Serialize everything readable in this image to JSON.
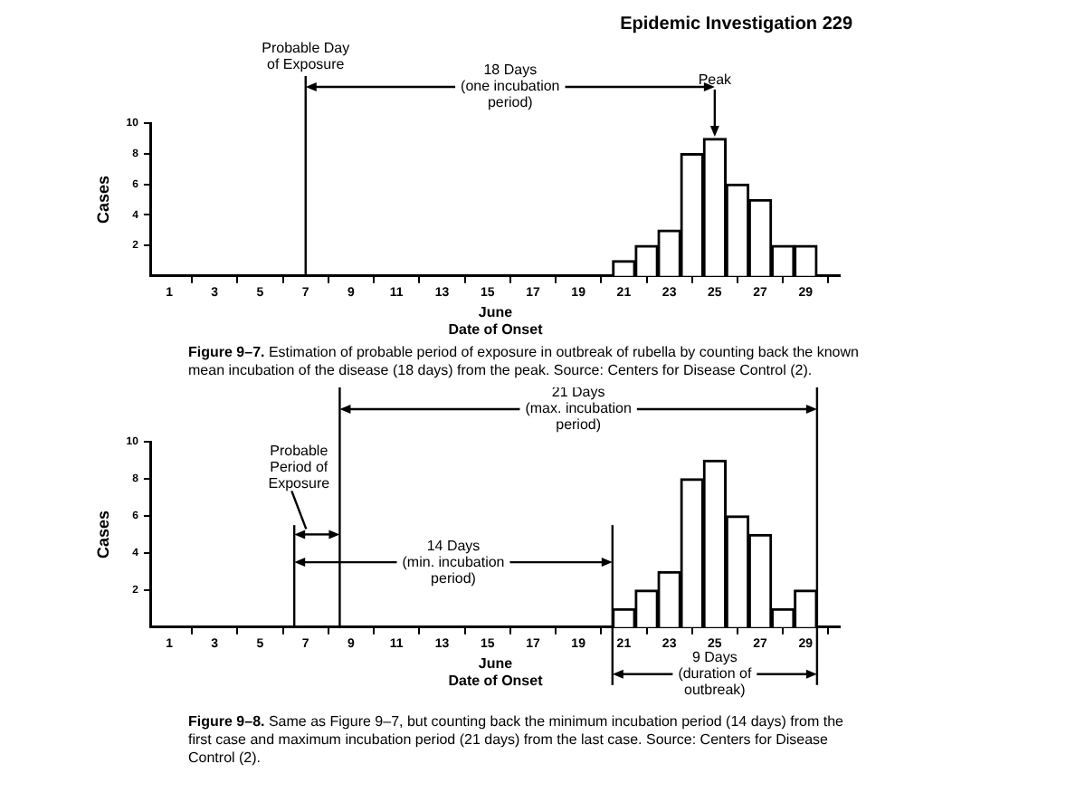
{
  "chart_data": [
    {
      "type": "bar",
      "x": [
        21,
        22,
        23,
        24,
        25,
        26,
        27,
        28,
        29
      ],
      "values": [
        1,
        2,
        3,
        8,
        9,
        6,
        5,
        2,
        2
      ],
      "color": "#ffffff",
      "xlabel": "June\nDate of Onset",
      "ylabel": "Cases",
      "xlim": [
        0.2,
        30.5
      ],
      "xticks": [
        1,
        3,
        5,
        7,
        9,
        11,
        13,
        15,
        17,
        19,
        21,
        23,
        25,
        27,
        29
      ],
      "ylim": [
        0,
        10
      ],
      "yticks": [
        2,
        4,
        6,
        8,
        10
      ],
      "grid": false,
      "legend": false,
      "ref_lines": [
        {
          "axis": "x",
          "value": 7,
          "label": "Probable Day of Exposure"
        }
      ],
      "annotations": [
        "Epidemic Investigation 229",
        "18 Days (one incubation period)",
        {
          "text": "Peak",
          "x": 25,
          "y": 9
        },
        "Figure 9–7. Estimation of probable period of exposure in outbreak of rubella by counting back the known mean incubation of the disease (18 days) from the peak. Source: Centers for Disease Control (2)."
      ]
    },
    {
      "type": "bar",
      "x": [
        21,
        22,
        23,
        24,
        25,
        26,
        27,
        28,
        29
      ],
      "values": [
        1,
        2,
        3,
        8,
        9,
        6,
        5,
        1,
        2
      ],
      "color": "#ffffff",
      "xlabel": "June\nDate of Onset",
      "ylabel": "Cases",
      "xlim": [
        0.2,
        30.5
      ],
      "xticks": [
        1,
        3,
        5,
        7,
        9,
        11,
        13,
        15,
        17,
        19,
        21,
        23,
        25,
        27,
        29
      ],
      "ylim": [
        0,
        10
      ],
      "yticks": [
        2,
        4,
        6,
        8,
        10
      ],
      "grid": false,
      "legend": false,
      "ref_lines": [
        {
          "axis": "x",
          "value": 6.5
        },
        {
          "axis": "x",
          "value": 8.5
        },
        {
          "axis": "x",
          "value": 20.5
        },
        {
          "axis": "x",
          "value": 29.5
        }
      ],
      "annotations": [
        "Probable Period of Exposure",
        "21 Days (max. incubation period)",
        {
          "text": "14 Days (min. incubation period)",
          "x": 20.5,
          "y": 3.5
        },
        "9 Days (duration of outbreak)",
        "Figure 9–8. Same as Figure 9–7, but counting back the minimum incubation period (14 days) from the first case and maximum incubation period (21 days) from the last case. Source: Centers for Disease Control (2)."
      ]
    }
  ]
}
